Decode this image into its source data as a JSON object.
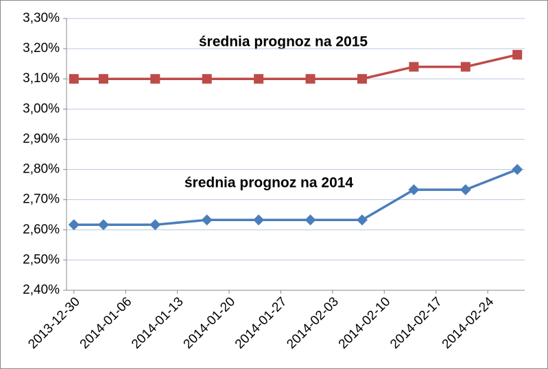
{
  "chart_data": {
    "type": "line",
    "x": [
      "2013-12-30",
      "2014-01-03",
      "2014-01-10",
      "2014-01-17",
      "2014-01-24",
      "2014-01-31",
      "2014-02-07",
      "2014-02-14",
      "2014-02-21",
      "2014-02-28"
    ],
    "series": [
      {
        "name": "średnia prognoz na 2015",
        "color": "#be4b48",
        "marker": "square",
        "values": [
          3.1,
          3.1,
          3.1,
          3.1,
          3.1,
          3.1,
          3.1,
          3.14,
          3.14,
          3.18
        ]
      },
      {
        "name": "średnia prognoz na 2014",
        "color": "#4a7ebb",
        "marker": "diamond",
        "values": [
          2.617,
          2.617,
          2.617,
          2.633,
          2.633,
          2.633,
          2.633,
          2.733,
          2.733,
          2.8
        ]
      }
    ],
    "xlim": [
      "2013-12-29",
      "2014-03-01"
    ],
    "xticks": [
      "2013-12-30",
      "2014-01-06",
      "2014-01-13",
      "2014-01-20",
      "2014-01-27",
      "2014-02-03",
      "2014-02-10",
      "2014-02-17",
      "2014-02-24"
    ],
    "ylim": [
      2.4,
      3.3
    ],
    "yticks": [
      {
        "value": 2.4,
        "label": "2,40%"
      },
      {
        "value": 2.5,
        "label": "2,50%"
      },
      {
        "value": 2.6,
        "label": "2,60%"
      },
      {
        "value": 2.7,
        "label": "2,70%"
      },
      {
        "value": 2.8,
        "label": "2,80%"
      },
      {
        "value": 2.9,
        "label": "2,90%"
      },
      {
        "value": 3.0,
        "label": "3,00%"
      },
      {
        "value": 3.1,
        "label": "3,10%"
      },
      {
        "value": 3.2,
        "label": "3,20%"
      },
      {
        "value": 3.3,
        "label": "3,30%"
      }
    ],
    "grid": true
  }
}
